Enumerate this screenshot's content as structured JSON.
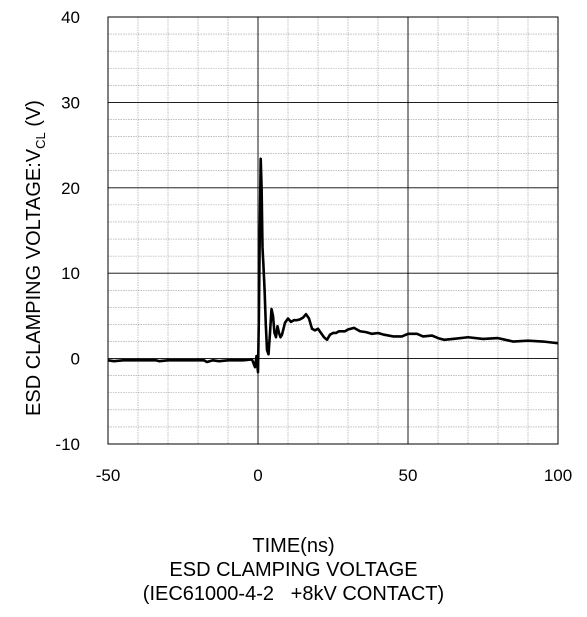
{
  "chart_data": {
    "type": "line",
    "xlabel": "TIME(ns)",
    "ylabel": "ESD CLAMPING VOLTAGE:V",
    "ylabel_sub": "CL",
    "ylabel_unit": " (V)",
    "caption_line1": "ESD CLAMPING VOLTAGE",
    "caption_line2": "(IEC61000-4-2   +8kV CONTACT)",
    "xlim": [
      -50,
      100
    ],
    "ylim": [
      -10,
      40
    ],
    "x_major_ticks": [
      -50,
      0,
      50,
      100
    ],
    "y_major_ticks": [
      -10,
      0,
      10,
      20,
      30,
      40
    ],
    "x_tick_labels": [
      "-50",
      "0",
      "50",
      "100"
    ],
    "y_tick_labels": [
      "-10",
      "0",
      "10",
      "20",
      "30",
      "40"
    ],
    "x_minor_step": 10,
    "y_minor_step": 2,
    "grid": true,
    "line_color": "#000000",
    "series": [
      {
        "x": [
          -50,
          -48,
          -45,
          -40,
          -34,
          -33,
          -30,
          -25,
          -18,
          -17,
          -15,
          -13,
          -10,
          -5,
          -2,
          -1,
          -0.5,
          0,
          0.3,
          0.6,
          0.9,
          1.2,
          1.5,
          1.8,
          2.2,
          2.6,
          3,
          3.5,
          4,
          4.5,
          5,
          5.5,
          6,
          6.5,
          7,
          7.5,
          8,
          9,
          10,
          11,
          12,
          13,
          14,
          15,
          16,
          17,
          18,
          19,
          20,
          21,
          22,
          23,
          24,
          25,
          26,
          27,
          28,
          29,
          30,
          32,
          34,
          36,
          38,
          40,
          42,
          45,
          48,
          50,
          53,
          55,
          58,
          60,
          62,
          65,
          70,
          75,
          80,
          85,
          90,
          95,
          100
        ],
        "y": [
          -0.2,
          -0.3,
          -0.2,
          -0.2,
          -0.2,
          -0.3,
          -0.2,
          -0.2,
          -0.2,
          -0.4,
          -0.2,
          -0.3,
          -0.2,
          -0.2,
          -0.1,
          -1.0,
          0.3,
          -1.6,
          5.0,
          15.0,
          23.4,
          20.0,
          13.0,
          11.0,
          8.0,
          4.0,
          1.0,
          0.5,
          3.0,
          5.8,
          5.0,
          3.0,
          2.5,
          3.8,
          3.0,
          2.5,
          2.8,
          4.2,
          4.7,
          4.3,
          4.5,
          4.5,
          4.6,
          4.8,
          5.2,
          4.7,
          3.5,
          3.3,
          3.5,
          3.0,
          2.5,
          2.2,
          2.8,
          3.0,
          3.0,
          3.2,
          3.2,
          3.2,
          3.4,
          3.6,
          3.2,
          3.1,
          2.9,
          3.0,
          2.8,
          2.6,
          2.6,
          2.9,
          2.9,
          2.6,
          2.7,
          2.4,
          2.2,
          2.3,
          2.5,
          2.3,
          2.4,
          2.0,
          2.1,
          2.0,
          1.8
        ]
      }
    ]
  }
}
